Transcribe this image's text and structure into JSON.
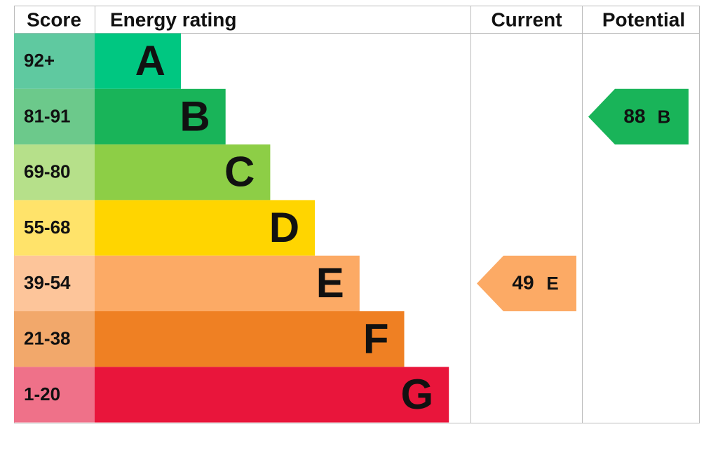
{
  "header": {
    "score": "Score",
    "energy_rating": "Energy rating",
    "current": "Current",
    "potential": "Potential"
  },
  "rows": [
    {
      "score": "92+",
      "rating": "A",
      "color": "#00c781",
      "score_color": "#5fc9a0"
    },
    {
      "score": "81-91",
      "rating": "B",
      "color": "#19b459",
      "score_color": "#6cc98b"
    },
    {
      "score": "69-80",
      "rating": "C",
      "color": "#8dce46",
      "score_color": "#b6e08a"
    },
    {
      "score": "55-68",
      "rating": "D",
      "color": "#ffd500",
      "score_color": "#ffe36a"
    },
    {
      "score": "39-54",
      "rating": "E",
      "color": "#fcaa65",
      "score_color": "#fdc59a"
    },
    {
      "score": "21-38",
      "rating": "F",
      "color": "#ef8023",
      "score_color": "#f2a86b"
    },
    {
      "score": "1-20",
      "rating": "G",
      "color": "#e9153b",
      "score_color": "#ef7189"
    }
  ],
  "current": {
    "score": 49,
    "rating": "E"
  },
  "potential": {
    "score": 88,
    "rating": "B"
  }
}
